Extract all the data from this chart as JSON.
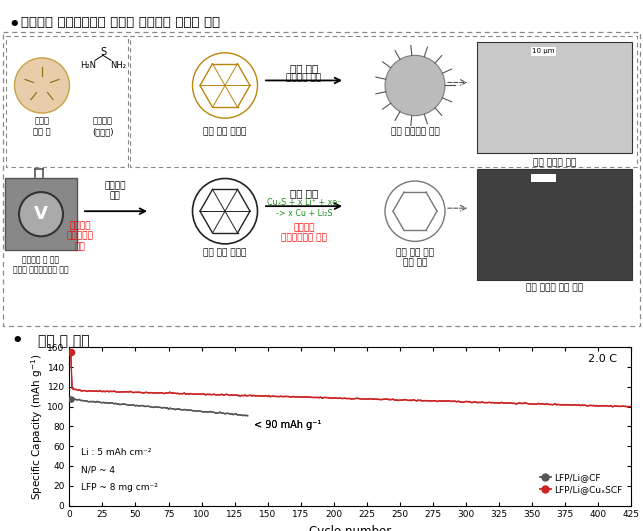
{
  "title_top": "전기화학 표면처리법을 이용한 리튬음극 제작법 개발",
  "title_bottom": "완전 셀 성능",
  "graph_xlabel": "Cycle number",
  "ylim": [
    0,
    160
  ],
  "xlim": [
    0,
    425
  ],
  "yticks": [
    0,
    20,
    40,
    60,
    80,
    100,
    120,
    140,
    160
  ],
  "xticks": [
    0,
    25,
    50,
    75,
    100,
    125,
    150,
    175,
    200,
    225,
    250,
    275,
    300,
    325,
    350,
    375,
    400,
    425
  ],
  "annotation_2C": "2.0 C",
  "annotation_90": "< 90 mAh g⁻¹",
  "text_li": "Li : 5 mAh cm⁻²",
  "text_np": "N/P ~ 4",
  "text_lfp": "LFP ~ 8 mg cm⁻²",
  "legend_gray": "LFP/Li@CF",
  "legend_red": "LFP/Li@CuₓSCF",
  "color_red": "#cc2222",
  "color_gray": "#555555",
  "bg_color": "#ffffff",
  "gray_start": 108,
  "gray_end": 91,
  "gray_max_cycle": 135,
  "red_first": 155,
  "red_second": 118,
  "red_end": 100,
  "red_max_cycle": 425
}
